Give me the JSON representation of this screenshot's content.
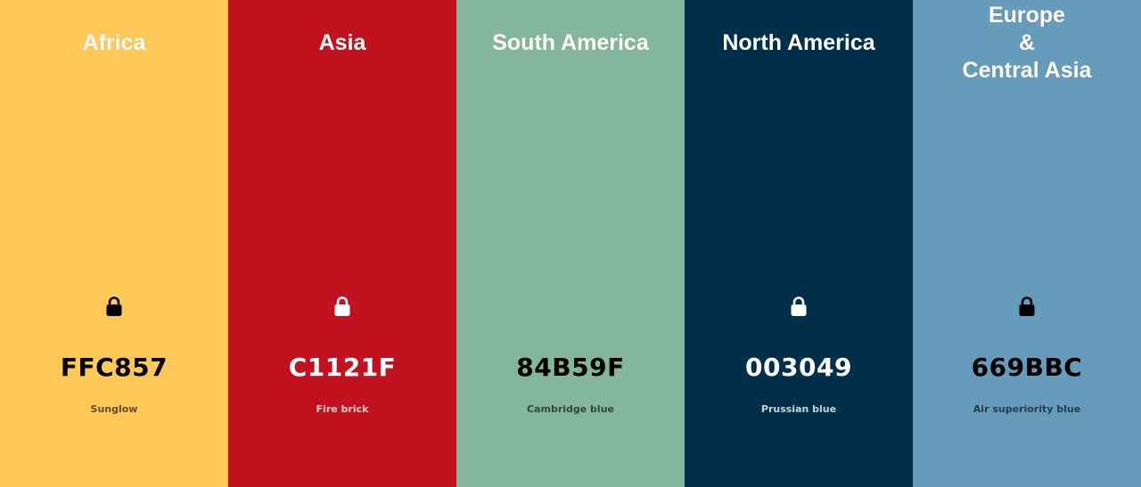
{
  "swatches": [
    {
      "region": "Africa",
      "hex": "FFC857",
      "name": "Sunglow",
      "color": "#FFC857",
      "lock_icon": "lock-icon",
      "lock_color": "#000000",
      "lock_visible": true,
      "text_tone": "dark"
    },
    {
      "region": "Asia",
      "hex": "C1121F",
      "name": "Fire brick",
      "color": "#C1121F",
      "lock_icon": "lock-icon",
      "lock_color": "#FFFFFF",
      "lock_visible": true,
      "text_tone": "light"
    },
    {
      "region": "South America",
      "hex": "84B59F",
      "name": "Cambridge blue",
      "color": "#84B59F",
      "lock_icon": "lock-icon",
      "lock_color": "#000000",
      "lock_visible": false,
      "text_tone": "dark"
    },
    {
      "region": "North America",
      "hex": "003049",
      "name": "Prussian blue",
      "color": "#003049",
      "lock_icon": "lock-icon",
      "lock_color": "#FFFFFF",
      "lock_visible": true,
      "text_tone": "light"
    },
    {
      "region": "Europe\n&\nCentral Asia",
      "hex": "669BBC",
      "name": "Air superiority blue",
      "color": "#669BBC",
      "lock_icon": "lock-icon",
      "lock_color": "#000000",
      "lock_visible": true,
      "text_tone": "dark"
    }
  ]
}
